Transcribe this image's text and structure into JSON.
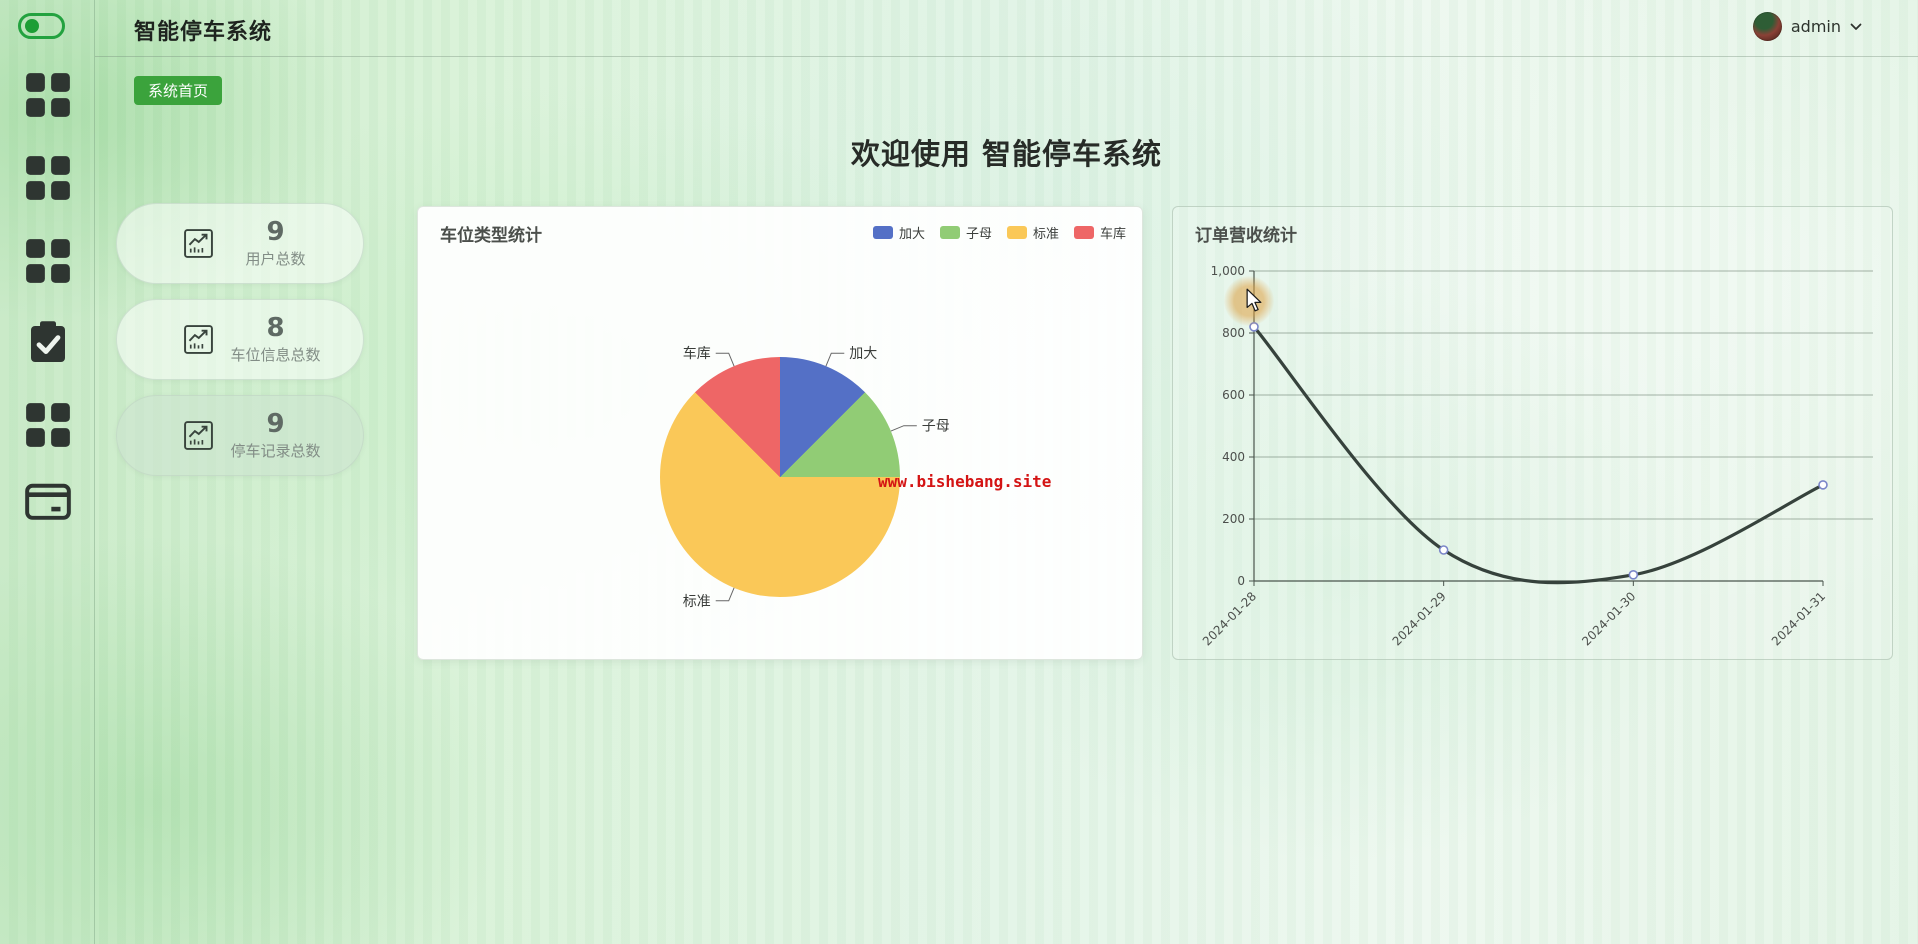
{
  "app": {
    "title": "智能停车系统",
    "breadcrumb_tag": "系统首页",
    "welcome_title": "欢迎使用 智能停车系统"
  },
  "header": {
    "user": {
      "name": "admin",
      "avatar": "user-photo",
      "caret": "chevron-down-icon"
    }
  },
  "sidebar": {
    "items": [
      {
        "icon": "toggle-on-icon"
      },
      {
        "icon": "grid-menu-icon"
      },
      {
        "icon": "grid-menu-icon"
      },
      {
        "icon": "grid-menu-icon"
      },
      {
        "icon": "clipboard-check-icon"
      },
      {
        "icon": "grid-menu-icon"
      },
      {
        "icon": "credit-card-icon"
      }
    ]
  },
  "stats": [
    {
      "value": "9",
      "label": "用户总数",
      "icon": "trend-chart-icon"
    },
    {
      "value": "8",
      "label": "车位信息总数",
      "icon": "trend-chart-icon"
    },
    {
      "value": "9",
      "label": "停车记录总数",
      "icon": "trend-chart-icon"
    }
  ],
  "watermark": "www.bishebang.site",
  "colors": {
    "accent_green": "#3ba33c",
    "toggle_green": "#23a23f",
    "sidebar_icon": "#2e3531",
    "line_color": "#36423c",
    "point_stroke": "#7b86c9",
    "grid_line": "rgba(85,105,90,0.5)",
    "axis_line": "#4a554d",
    "watermark_red": "#d41414"
  },
  "chart_data": [
    {
      "type": "pie",
      "title": "车位类型统计",
      "legend_position": "top-right",
      "slices": [
        {
          "label": "加大",
          "value": 1,
          "color": "#5470c6"
        },
        {
          "label": "子母",
          "value": 1,
          "color": "#91cc75"
        },
        {
          "label": "标准",
          "value": 5,
          "color": "#fac858"
        },
        {
          "label": "车库",
          "value": 1,
          "color": "#ee6666"
        }
      ],
      "start": "top",
      "direction": "clockwise",
      "labels_outside": true
    },
    {
      "type": "line",
      "title": "订单营收统计",
      "x": [
        "2024-01-28",
        "2024-01-29",
        "2024-01-30",
        "2024-01-31"
      ],
      "series": [
        {
          "name": "订单营收",
          "values": [
            820,
            100,
            20,
            310
          ]
        }
      ],
      "ylim": [
        0,
        1000
      ],
      "ytick_step": 200,
      "ytick_labels": [
        "0",
        "200",
        "400",
        "600",
        "800",
        "1,000"
      ],
      "xlabel_rotation_deg": -45,
      "smooth": true,
      "grid": true,
      "legend_position": "none"
    }
  ]
}
